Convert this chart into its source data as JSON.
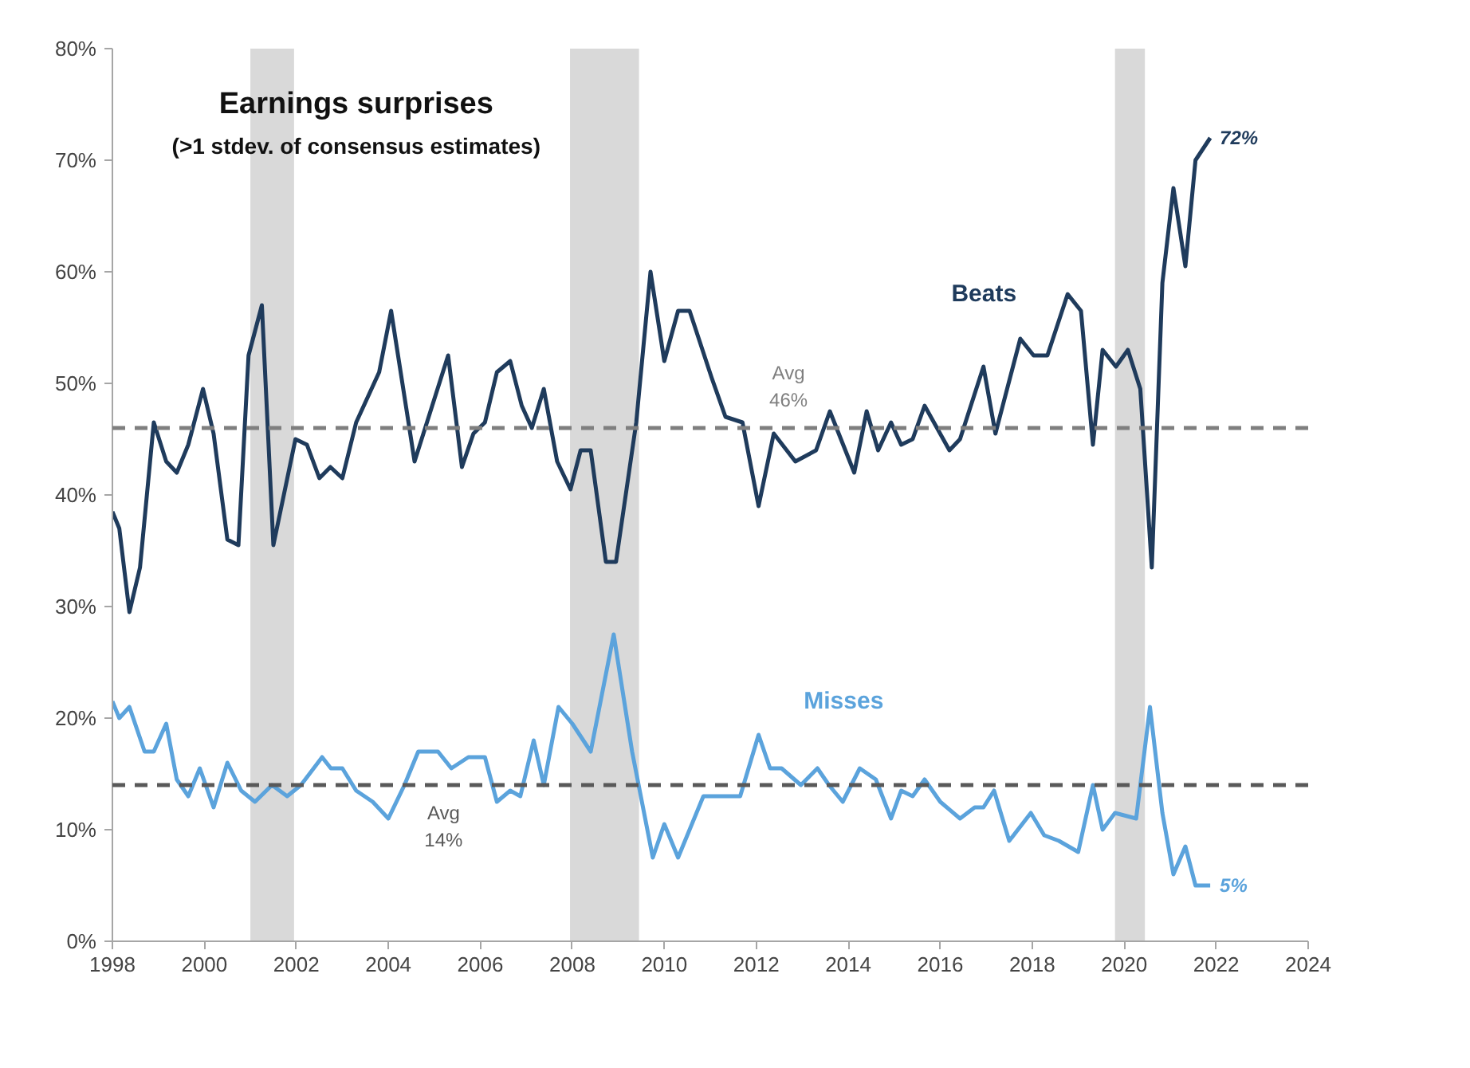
{
  "chart_data": {
    "type": "line",
    "title": "Earnings surprises",
    "subtitle": "(>1 stdev. of consensus estimates)",
    "xlim": [
      1998,
      2024
    ],
    "xticks": [
      1998,
      2000,
      2002,
      2004,
      2006,
      2008,
      2010,
      2012,
      2014,
      2016,
      2018,
      2020,
      2022,
      2024
    ],
    "ylim": [
      0,
      80
    ],
    "yticks": [
      {
        "value": 0,
        "label": "0%"
      },
      {
        "value": 10,
        "label": "10%"
      },
      {
        "value": 20,
        "label": "20%"
      },
      {
        "value": 30,
        "label": "30%"
      },
      {
        "value": 40,
        "label": "40%"
      },
      {
        "value": 50,
        "label": "50%"
      },
      {
        "value": 60,
        "label": "60%"
      },
      {
        "value": 70,
        "label": "70%"
      },
      {
        "value": 80,
        "label": "80%"
      }
    ],
    "grid": false,
    "marker": "none",
    "line_style": "solid",
    "series": [
      {
        "name": "Beats",
        "color": "#1f3b5c",
        "x": [
          1998.0,
          1998.15,
          1998.37,
          1998.6,
          1998.9,
          1999.17,
          1999.4,
          1999.65,
          1999.97,
          2000.2,
          2000.5,
          2000.74,
          2000.96,
          2001.25,
          2001.5,
          2001.98,
          2002.23,
          2002.5,
          2002.74,
          2003.0,
          2003.3,
          2003.8,
          2004.06,
          2004.57,
          2005.3,
          2005.6,
          2005.85,
          2006.1,
          2006.36,
          2006.65,
          2006.9,
          2007.12,
          2007.38,
          2007.67,
          2007.96,
          2008.18,
          2008.4,
          2008.73,
          2008.95,
          2009.39,
          2009.7,
          2010.0,
          2010.3,
          2010.55,
          2011.03,
          2011.33,
          2011.7,
          2012.05,
          2012.38,
          2012.85,
          2013.3,
          2013.6,
          2014.13,
          2014.4,
          2014.65,
          2014.93,
          2015.15,
          2015.4,
          2015.66,
          2016.2,
          2016.43,
          2016.94,
          2017.2,
          2017.74,
          2018.03,
          2018.33,
          2018.77,
          2019.06,
          2019.32,
          2019.53,
          2019.82,
          2020.08,
          2020.35,
          2020.6,
          2020.83,
          2021.07,
          2021.33,
          2021.55,
          2021.87
        ],
        "values": [
          38.5,
          37,
          29.5,
          33.5,
          46.5,
          43,
          42,
          44.5,
          49.5,
          45.5,
          36,
          35.5,
          52.5,
          57,
          35.5,
          45,
          44.5,
          41.5,
          42.5,
          41.5,
          46.5,
          51,
          56.5,
          43,
          52.5,
          42.5,
          45.5,
          46.5,
          51,
          52,
          48,
          46,
          49.5,
          43,
          40.5,
          44,
          44,
          34,
          34,
          46.5,
          60,
          52,
          56.5,
          56.5,
          50.5,
          47,
          46.5,
          39,
          45.5,
          43,
          44,
          47.5,
          42,
          47.5,
          44,
          46.5,
          44.5,
          45,
          48,
          44,
          45,
          51.5,
          45.5,
          54,
          52.5,
          52.5,
          58,
          56.5,
          44.5,
          53,
          51.5,
          53,
          49.5,
          33.5,
          59,
          67.5,
          60.5,
          70,
          72
        ],
        "value_labels": [
          null,
          null,
          null,
          null,
          null,
          null,
          null,
          null,
          null,
          null,
          null,
          null,
          null,
          null,
          null,
          null,
          null,
          null,
          null,
          null,
          null,
          null,
          null,
          null,
          null,
          null,
          null,
          null,
          null,
          null,
          null,
          null,
          null,
          null,
          null,
          null,
          null,
          null,
          null,
          null,
          null,
          null,
          null,
          null,
          null,
          null,
          null,
          null,
          null,
          null,
          null,
          null,
          null,
          null,
          null,
          null,
          null,
          null,
          null,
          null,
          null,
          null,
          null,
          null,
          null,
          null,
          null,
          null,
          null,
          null,
          null,
          null,
          null,
          null,
          null,
          null,
          null,
          null,
          "72%"
        ]
      },
      {
        "name": "Misses",
        "color": "#5ba3dc",
        "x": [
          1998.0,
          1998.15,
          1998.37,
          1998.7,
          1998.9,
          1999.17,
          1999.4,
          1999.65,
          1999.9,
          2000.2,
          2000.5,
          2000.8,
          2001.1,
          2001.47,
          2001.8,
          2002.1,
          2002.56,
          2002.75,
          2003.0,
          2003.3,
          2003.66,
          2004.0,
          2004.35,
          2004.65,
          2005.08,
          2005.37,
          2005.74,
          2006.1,
          2006.36,
          2006.65,
          2006.87,
          2007.16,
          2007.38,
          2007.7,
          2008.0,
          2008.4,
          2008.9,
          2009.3,
          2009.75,
          2010.0,
          2010.3,
          2010.85,
          2011.65,
          2012.05,
          2012.3,
          2012.55,
          2012.97,
          2013.33,
          2013.58,
          2013.88,
          2014.25,
          2014.6,
          2014.93,
          2015.15,
          2015.4,
          2015.66,
          2016.0,
          2016.43,
          2016.75,
          2016.94,
          2017.17,
          2017.5,
          2017.97,
          2018.26,
          2018.58,
          2019.0,
          2019.32,
          2019.53,
          2019.8,
          2020.26,
          2020.56,
          2020.83,
          2021.07,
          2021.33,
          2021.55,
          2021.87
        ],
        "values": [
          21.5,
          20,
          21,
          17,
          17,
          19.5,
          14.5,
          13,
          15.5,
          12,
          16,
          13.5,
          12.5,
          14,
          13,
          14,
          16.5,
          15.5,
          15.5,
          13.5,
          12.5,
          11,
          14,
          17,
          17,
          15.5,
          16.5,
          16.5,
          12.5,
          13.5,
          13,
          18,
          14,
          21,
          19.5,
          17,
          27.5,
          17,
          7.5,
          10.5,
          7.5,
          13,
          13,
          18.5,
          15.5,
          15.5,
          14,
          15.5,
          14,
          12.5,
          15.5,
          14.5,
          11,
          13.5,
          13,
          14.5,
          12.5,
          11,
          12,
          12,
          13.5,
          9,
          11.5,
          9.5,
          9,
          8,
          14,
          10,
          11.5,
          11,
          21,
          11.5,
          6,
          8.5,
          5,
          5
        ],
        "value_labels": [
          null,
          null,
          null,
          null,
          null,
          null,
          null,
          null,
          null,
          null,
          null,
          null,
          null,
          null,
          null,
          null,
          null,
          null,
          null,
          null,
          null,
          null,
          null,
          null,
          null,
          null,
          null,
          null,
          null,
          null,
          null,
          null,
          null,
          null,
          null,
          null,
          null,
          null,
          null,
          null,
          null,
          null,
          null,
          null,
          null,
          null,
          null,
          null,
          null,
          null,
          null,
          null,
          null,
          null,
          null,
          null,
          null,
          null,
          null,
          null,
          null,
          null,
          null,
          null,
          null,
          null,
          null,
          null,
          null,
          null,
          null,
          null,
          null,
          null,
          null,
          "5%"
        ]
      }
    ],
    "ref_lines": [
      {
        "axis": "y",
        "value": 46,
        "label": "Avg\n46%",
        "color": "#7f7f7f",
        "line_style": "dashed"
      },
      {
        "axis": "y",
        "value": 14,
        "label": "Avg\n14%",
        "color": "#595959",
        "line_style": "dashed"
      }
    ],
    "bands": [
      {
        "axis": "x",
        "from": 2001.0,
        "to": 2001.95,
        "color": "#d9d9d9"
      },
      {
        "axis": "x",
        "from": 2007.95,
        "to": 2009.45,
        "color": "#d9d9d9"
      },
      {
        "axis": "x",
        "from": 2019.8,
        "to": 2020.45,
        "color": "#d9d9d9"
      }
    ]
  }
}
